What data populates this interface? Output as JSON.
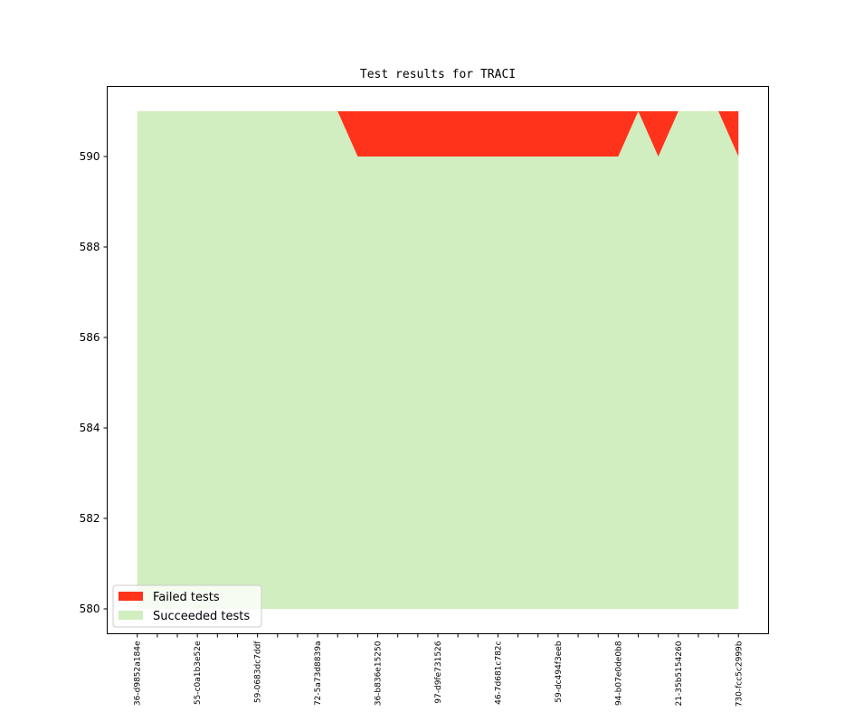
{
  "chart_data": {
    "type": "area",
    "title": "Test results for TRACI",
    "xlabel": "",
    "ylabel": "",
    "xlim": [
      -1.5,
      31.5
    ],
    "ylim": [
      579.45,
      591.55
    ],
    "yticks": [
      580,
      582,
      584,
      586,
      588,
      590
    ],
    "x": [
      0,
      1,
      2,
      3,
      4,
      5,
      6,
      7,
      8,
      9,
      10,
      11,
      12,
      13,
      14,
      15,
      16,
      17,
      18,
      19,
      20,
      21,
      22,
      23,
      24,
      25,
      26,
      27,
      28,
      29,
      30
    ],
    "xtick_labels": [
      {
        "x": 0,
        "label": "36-d9852a184e"
      },
      {
        "x": 3,
        "label": "55-c0a1b3e52e"
      },
      {
        "x": 6,
        "label": "59-0683dc7ddf"
      },
      {
        "x": 9,
        "label": "72-5a73d8839a"
      },
      {
        "x": 12,
        "label": "36-b836e15250"
      },
      {
        "x": 15,
        "label": "97-d9fe731526"
      },
      {
        "x": 18,
        "label": "46-7d681c782c"
      },
      {
        "x": 21,
        "label": "59-dc494f3eeb"
      },
      {
        "x": 24,
        "label": "94-b07e0de0b8"
      },
      {
        "x": 27,
        "label": "21-35b5154260"
      },
      {
        "x": 30,
        "label": "730-fcc5c2999b"
      }
    ],
    "baseline": 580,
    "series": [
      {
        "name": "Succeeded tests",
        "color": "#d0eebf",
        "values": [
          591,
          591,
          591,
          591,
          591,
          591,
          591,
          591,
          591,
          591,
          591,
          590,
          590,
          590,
          590,
          590,
          590,
          590,
          590,
          590,
          590,
          590,
          590,
          590,
          590,
          591,
          590,
          591,
          591,
          591,
          590
        ]
      },
      {
        "name": "Failed tests",
        "color": "#ff331c",
        "values": [
          0,
          0,
          0,
          0,
          0,
          0,
          0,
          0,
          0,
          0,
          0,
          1,
          1,
          1,
          1,
          1,
          1,
          1,
          1,
          1,
          1,
          1,
          1,
          1,
          1,
          0,
          1,
          0,
          0,
          0,
          1
        ]
      }
    ],
    "legend": {
      "placement": "lower-left",
      "entries": [
        "Failed tests",
        "Succeeded tests"
      ]
    }
  }
}
